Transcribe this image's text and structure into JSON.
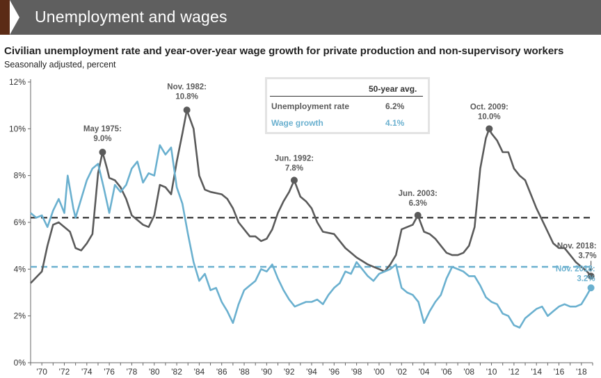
{
  "header": {
    "title": "Unemployment and wages"
  },
  "chart_data": {
    "type": "line",
    "title": "Civilian unemployment rate and year-over-year wage growth for private production and non-supervisory workers",
    "subtitle": "Seasonally adjusted, percent",
    "x_tick_labels": [
      "'70",
      "'72",
      "'74",
      "'76",
      "'78",
      "'80",
      "'82",
      "'84",
      "'86",
      "'88",
      "'90",
      "'92",
      "'94",
      "'96",
      "'98",
      "'00",
      "'02",
      "'04",
      "'06",
      "'08",
      "'10",
      "'12",
      "'14",
      "'16",
      "'18"
    ],
    "x_tick_years": [
      1970,
      1972,
      1974,
      1976,
      1978,
      1980,
      1982,
      1984,
      1986,
      1988,
      1990,
      1992,
      1994,
      1996,
      1998,
      2000,
      2002,
      2004,
      2006,
      2008,
      2010,
      2012,
      2014,
      2016,
      2018
    ],
    "xlim": [
      1969.0,
      2019.0
    ],
    "y_tick_labels": [
      "0%",
      "2%",
      "4%",
      "6%",
      "8%",
      "10%",
      "12%"
    ],
    "y_ticks": [
      0,
      2,
      4,
      6,
      8,
      10,
      12
    ],
    "ylim": [
      0,
      12
    ],
    "grid": false,
    "legend_table": {
      "header": "50-year avg.",
      "rows": [
        {
          "label": "Unemployment rate",
          "value": "6.2%",
          "color": "#5a5a5a"
        },
        {
          "label": "Wage growth",
          "value": "4.1%",
          "color": "#6ab0cf"
        }
      ]
    },
    "averages": [
      {
        "series": "Unemployment rate",
        "value": 6.2,
        "color": "#4a4a4a"
      },
      {
        "series": "Wage growth",
        "value": 4.1,
        "color": "#6ab0cf"
      }
    ],
    "series": [
      {
        "name": "Unemployment rate",
        "color": "#5a5a5a",
        "points": [
          [
            1969.0,
            3.4
          ],
          [
            1970.0,
            3.9
          ],
          [
            1970.5,
            5.0
          ],
          [
            1971.0,
            5.9
          ],
          [
            1971.5,
            6.0
          ],
          [
            1972.0,
            5.8
          ],
          [
            1972.5,
            5.6
          ],
          [
            1973.0,
            4.9
          ],
          [
            1973.5,
            4.8
          ],
          [
            1974.0,
            5.1
          ],
          [
            1974.5,
            5.5
          ],
          [
            1975.0,
            8.1
          ],
          [
            1975.4,
            9.0
          ],
          [
            1975.8,
            8.3
          ],
          [
            1976.0,
            7.9
          ],
          [
            1976.5,
            7.8
          ],
          [
            1977.0,
            7.5
          ],
          [
            1977.5,
            7.0
          ],
          [
            1978.0,
            6.3
          ],
          [
            1978.5,
            6.1
          ],
          [
            1979.0,
            5.9
          ],
          [
            1979.5,
            5.8
          ],
          [
            1980.0,
            6.3
          ],
          [
            1980.5,
            7.6
          ],
          [
            1981.0,
            7.5
          ],
          [
            1981.5,
            7.2
          ],
          [
            1982.0,
            8.6
          ],
          [
            1982.5,
            9.8
          ],
          [
            1982.9,
            10.8
          ],
          [
            1983.5,
            10.0
          ],
          [
            1984.0,
            8.0
          ],
          [
            1984.5,
            7.4
          ],
          [
            1985.0,
            7.3
          ],
          [
            1986.0,
            7.2
          ],
          [
            1986.5,
            7.0
          ],
          [
            1987.0,
            6.6
          ],
          [
            1987.5,
            6.0
          ],
          [
            1988.0,
            5.7
          ],
          [
            1988.5,
            5.4
          ],
          [
            1989.0,
            5.4
          ],
          [
            1989.5,
            5.2
          ],
          [
            1990.0,
            5.3
          ],
          [
            1990.5,
            5.7
          ],
          [
            1991.0,
            6.4
          ],
          [
            1991.5,
            6.9
          ],
          [
            1992.0,
            7.3
          ],
          [
            1992.45,
            7.8
          ],
          [
            1993.0,
            7.1
          ],
          [
            1993.5,
            6.9
          ],
          [
            1994.0,
            6.6
          ],
          [
            1994.5,
            6.0
          ],
          [
            1995.0,
            5.6
          ],
          [
            1996.0,
            5.5
          ],
          [
            1997.0,
            4.9
          ],
          [
            1998.0,
            4.5
          ],
          [
            1999.0,
            4.2
          ],
          [
            2000.0,
            4.0
          ],
          [
            2000.5,
            3.9
          ],
          [
            2001.0,
            4.2
          ],
          [
            2001.5,
            4.6
          ],
          [
            2002.0,
            5.7
          ],
          [
            2002.5,
            5.8
          ],
          [
            2003.0,
            5.9
          ],
          [
            2003.45,
            6.3
          ],
          [
            2004.0,
            5.6
          ],
          [
            2004.5,
            5.5
          ],
          [
            2005.0,
            5.3
          ],
          [
            2005.5,
            5.0
          ],
          [
            2006.0,
            4.7
          ],
          [
            2006.5,
            4.6
          ],
          [
            2007.0,
            4.6
          ],
          [
            2007.5,
            4.7
          ],
          [
            2008.0,
            5.0
          ],
          [
            2008.5,
            5.8
          ],
          [
            2009.0,
            8.3
          ],
          [
            2009.5,
            9.6
          ],
          [
            2009.8,
            10.0
          ],
          [
            2010.0,
            9.8
          ],
          [
            2010.5,
            9.5
          ],
          [
            2011.0,
            9.0
          ],
          [
            2011.5,
            9.0
          ],
          [
            2012.0,
            8.3
          ],
          [
            2012.5,
            8.0
          ],
          [
            2013.0,
            7.8
          ],
          [
            2013.5,
            7.2
          ],
          [
            2014.0,
            6.6
          ],
          [
            2014.5,
            6.1
          ],
          [
            2015.0,
            5.6
          ],
          [
            2015.5,
            5.1
          ],
          [
            2016.0,
            4.9
          ],
          [
            2016.5,
            4.9
          ],
          [
            2017.0,
            4.6
          ],
          [
            2017.5,
            4.3
          ],
          [
            2018.0,
            4.1
          ],
          [
            2018.5,
            3.9
          ],
          [
            2018.85,
            3.7
          ]
        ],
        "annotations": [
          {
            "label": "May 1975:",
            "value_label": "9.0%",
            "x": 1975.4,
            "y": 9.0
          },
          {
            "label": "Nov. 1982:",
            "value_label": "10.8%",
            "x": 1982.9,
            "y": 10.8
          },
          {
            "label": "Jun. 1992:",
            "value_label": "7.8%",
            "x": 1992.45,
            "y": 7.8
          },
          {
            "label": "Jun. 2003:",
            "value_label": "6.3%",
            "x": 2003.45,
            "y": 6.3
          },
          {
            "label": "Oct. 2009:",
            "value_label": "10.0%",
            "x": 2009.8,
            "y": 10.0
          },
          {
            "label": "Nov. 2018:",
            "value_label": "3.7%",
            "x": 2018.85,
            "y": 3.7
          }
        ]
      },
      {
        "name": "Wage growth",
        "color": "#6ab0cf",
        "points": [
          [
            1969.0,
            6.4
          ],
          [
            1969.5,
            6.2
          ],
          [
            1970.0,
            6.3
          ],
          [
            1970.5,
            5.8
          ],
          [
            1971.0,
            6.5
          ],
          [
            1971.5,
            7.0
          ],
          [
            1972.0,
            6.4
          ],
          [
            1972.3,
            8.0
          ],
          [
            1972.8,
            6.6
          ],
          [
            1973.0,
            6.2
          ],
          [
            1973.5,
            7.0
          ],
          [
            1974.0,
            7.8
          ],
          [
            1974.5,
            8.3
          ],
          [
            1975.0,
            8.5
          ],
          [
            1975.5,
            7.5
          ],
          [
            1976.0,
            6.4
          ],
          [
            1976.5,
            7.6
          ],
          [
            1977.0,
            7.3
          ],
          [
            1977.5,
            7.6
          ],
          [
            1978.0,
            8.3
          ],
          [
            1978.5,
            8.6
          ],
          [
            1979.0,
            7.7
          ],
          [
            1979.5,
            8.1
          ],
          [
            1980.0,
            8.0
          ],
          [
            1980.5,
            9.3
          ],
          [
            1981.0,
            8.9
          ],
          [
            1981.5,
            9.2
          ],
          [
            1982.0,
            7.5
          ],
          [
            1982.5,
            6.8
          ],
          [
            1983.0,
            5.5
          ],
          [
            1983.5,
            4.3
          ],
          [
            1984.0,
            3.5
          ],
          [
            1984.5,
            3.8
          ],
          [
            1985.0,
            3.1
          ],
          [
            1985.5,
            3.2
          ],
          [
            1986.0,
            2.6
          ],
          [
            1986.5,
            2.2
          ],
          [
            1987.0,
            1.7
          ],
          [
            1987.5,
            2.5
          ],
          [
            1988.0,
            3.1
          ],
          [
            1988.5,
            3.3
          ],
          [
            1989.0,
            3.5
          ],
          [
            1989.5,
            4.0
          ],
          [
            1990.0,
            3.9
          ],
          [
            1990.5,
            4.2
          ],
          [
            1991.0,
            3.6
          ],
          [
            1991.5,
            3.1
          ],
          [
            1992.0,
            2.7
          ],
          [
            1992.5,
            2.4
          ],
          [
            1993.0,
            2.5
          ],
          [
            1993.5,
            2.6
          ],
          [
            1994.0,
            2.6
          ],
          [
            1994.5,
            2.7
          ],
          [
            1995.0,
            2.5
          ],
          [
            1995.5,
            2.9
          ],
          [
            1996.0,
            3.2
          ],
          [
            1996.5,
            3.4
          ],
          [
            1997.0,
            3.9
          ],
          [
            1997.5,
            3.8
          ],
          [
            1998.0,
            4.3
          ],
          [
            1998.5,
            4.0
          ],
          [
            1999.0,
            3.7
          ],
          [
            1999.5,
            3.5
          ],
          [
            2000.0,
            3.8
          ],
          [
            2000.5,
            3.9
          ],
          [
            2001.0,
            4.0
          ],
          [
            2001.5,
            4.2
          ],
          [
            2002.0,
            3.2
          ],
          [
            2002.5,
            3.0
          ],
          [
            2003.0,
            2.9
          ],
          [
            2003.5,
            2.6
          ],
          [
            2004.0,
            1.7
          ],
          [
            2004.5,
            2.2
          ],
          [
            2005.0,
            2.6
          ],
          [
            2005.5,
            2.9
          ],
          [
            2006.0,
            3.6
          ],
          [
            2006.5,
            4.1
          ],
          [
            2007.0,
            4.0
          ],
          [
            2007.5,
            3.9
          ],
          [
            2008.0,
            3.7
          ],
          [
            2008.5,
            3.7
          ],
          [
            2009.0,
            3.3
          ],
          [
            2009.5,
            2.8
          ],
          [
            2010.0,
            2.6
          ],
          [
            2010.5,
            2.5
          ],
          [
            2011.0,
            2.1
          ],
          [
            2011.5,
            2.0
          ],
          [
            2012.0,
            1.6
          ],
          [
            2012.5,
            1.5
          ],
          [
            2013.0,
            1.9
          ],
          [
            2013.5,
            2.1
          ],
          [
            2014.0,
            2.3
          ],
          [
            2014.5,
            2.4
          ],
          [
            2015.0,
            2.0
          ],
          [
            2015.5,
            2.2
          ],
          [
            2016.0,
            2.4
          ],
          [
            2016.5,
            2.5
          ],
          [
            2017.0,
            2.4
          ],
          [
            2017.5,
            2.4
          ],
          [
            2018.0,
            2.5
          ],
          [
            2018.5,
            2.9
          ],
          [
            2018.85,
            3.2
          ]
        ],
        "annotations": [
          {
            "label": "Nov. 2018:",
            "value_label": "3.2%",
            "x": 2018.85,
            "y": 3.2
          }
        ]
      }
    ]
  }
}
